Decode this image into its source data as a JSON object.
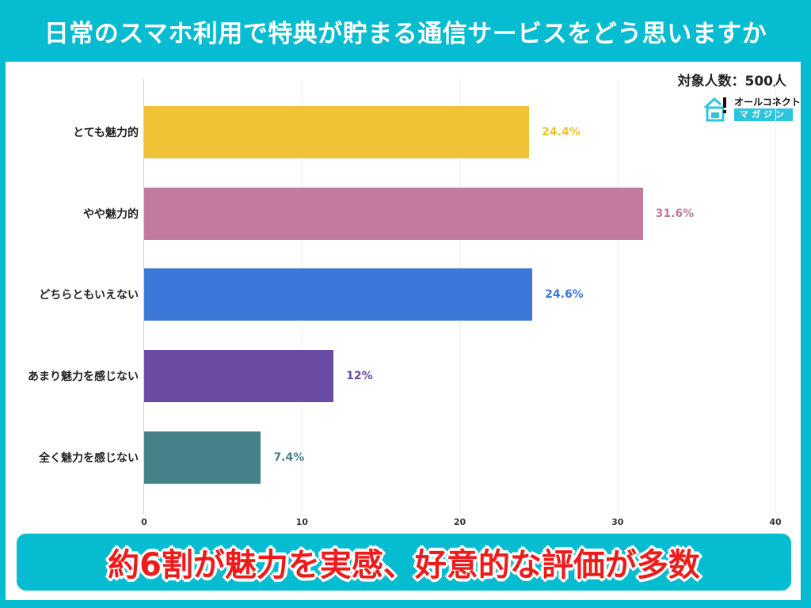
{
  "header": {
    "title": "日常のスマホ利用で特典が貯まる通信サービスをどう思いますか"
  },
  "meta": {
    "respondents": "対象人数：500人"
  },
  "logo": {
    "top": "オールコネクト",
    "bottom": "マガジン"
  },
  "banner": {
    "text": "約6割が魅力を実感、好意的な評価が多数"
  },
  "chart_data": {
    "type": "bar",
    "orientation": "horizontal",
    "title": "日常のスマホ利用で特典が貯まる通信サービスをどう思いますか",
    "categories": [
      "とても魅力的",
      "やや魅力的",
      "どちらともいえない",
      "あまり魅力を感じない",
      "全く魅力を感じない"
    ],
    "values": [
      24.4,
      31.6,
      24.6,
      12,
      7.4
    ],
    "value_labels": [
      "24.4%",
      "31.6%",
      "24.6%",
      "12%",
      "7.4%"
    ],
    "colors": [
      "#f0c235",
      "#c27a9f",
      "#3b78d8",
      "#6a4ca5",
      "#46818a"
    ],
    "label_colors": [
      "#f0c235",
      "#c27a9f",
      "#3b78d8",
      "#6a4ca5",
      "#46818a"
    ],
    "xlabel": "",
    "ylabel": "",
    "xlim": [
      0,
      40
    ],
    "x_ticks": [
      "0",
      "10",
      "20",
      "30",
      "40"
    ],
    "grid": true,
    "legend": "none"
  }
}
